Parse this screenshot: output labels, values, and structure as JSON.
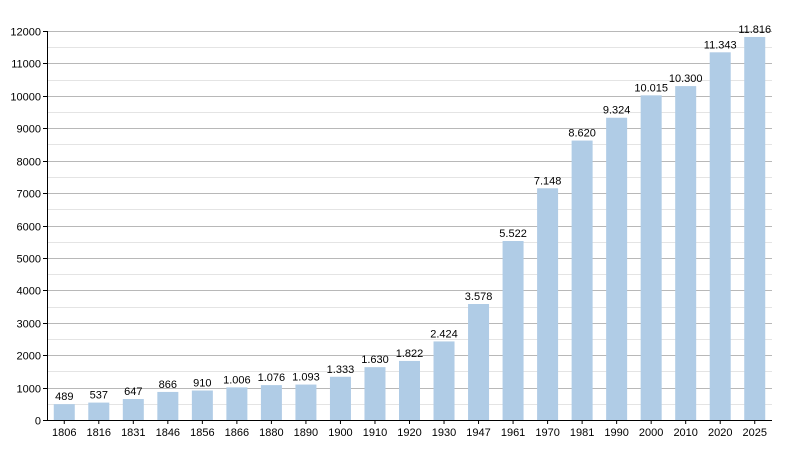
{
  "chart_data": {
    "type": "bar",
    "categories": [
      "1806",
      "1816",
      "1831",
      "1846",
      "1856",
      "1866",
      "1880",
      "1890",
      "1900",
      "1910",
      "1920",
      "1930",
      "1947",
      "1961",
      "1970",
      "1981",
      "1990",
      "2000",
      "2010",
      "2020",
      "2025"
    ],
    "values": [
      489,
      537,
      647,
      866,
      910,
      1006,
      1076,
      1093,
      1333,
      1630,
      1822,
      2424,
      3578,
      5522,
      7148,
      8620,
      9324,
      10015,
      10300,
      11343,
      11816
    ],
    "value_labels": [
      "489",
      "537",
      "647",
      "866",
      "910",
      "1.006",
      "1.076",
      "1.093",
      "1.333",
      "1.630",
      "1.822",
      "2.424",
      "3.578",
      "5.522",
      "7.148",
      "8.620",
      "9.324",
      "10.015",
      "10.300",
      "11.343",
      "11.816"
    ],
    "y_ticks": [
      0,
      1000,
      2000,
      3000,
      4000,
      5000,
      6000,
      7000,
      8000,
      9000,
      10000,
      11000,
      12000
    ],
    "y_tick_labels": [
      "0",
      "1000",
      "2000",
      "3000",
      "4000",
      "5000",
      "6000",
      "7000",
      "8000",
      "9000",
      "10000",
      "11000",
      "12000"
    ],
    "ylim": [
      0,
      12000
    ],
    "minor_gridlines": true,
    "bar_color": "#b0cce6",
    "legend": false,
    "title": "",
    "xlabel": "",
    "ylabel": ""
  }
}
